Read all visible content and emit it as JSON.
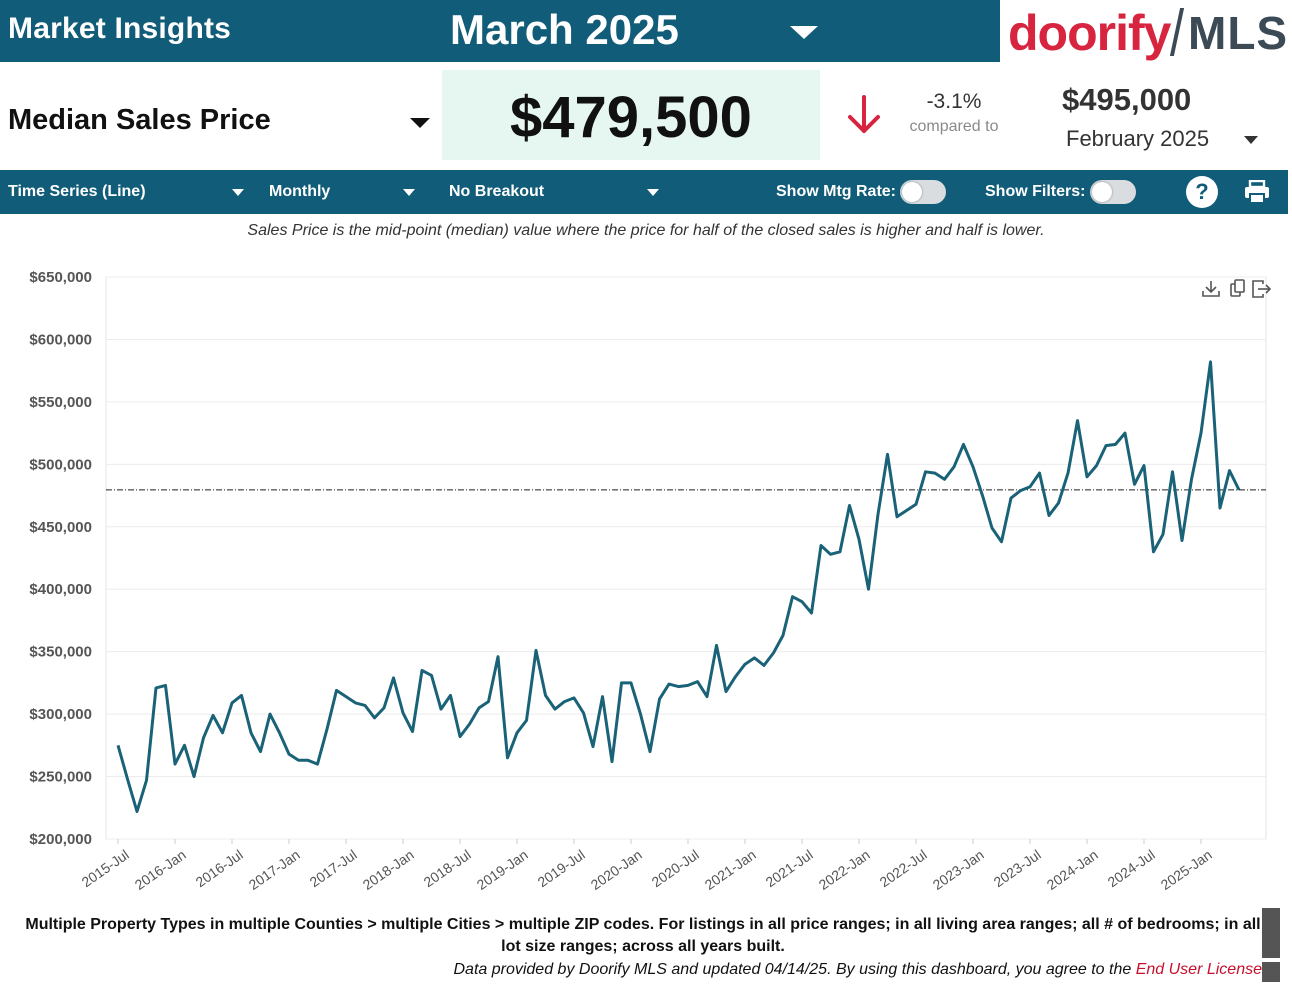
{
  "header": {
    "title": "Market Insights",
    "period": "March 2025",
    "logo_brand": "doorify",
    "logo_mls": "MLS"
  },
  "metric": {
    "name": "Median Sales Price",
    "value": "$479,500",
    "change_pct": "-3.1%",
    "compared_label": "compared to",
    "compare_value": "$495,000",
    "compare_month": "February 2025"
  },
  "controls": {
    "chart_type": "Time Series (Line)",
    "interval": "Monthly",
    "breakout": "No Breakout",
    "mtg_rate_label": "Show Mtg Rate:",
    "filters_label": "Show Filters:",
    "help_label": "?"
  },
  "note": "Sales Price is the mid-point (median) value where the price for half of the closed sales is higher and half is lower.",
  "colors": {
    "header_bg": "#115c78",
    "line": "#1a6277",
    "value_box": "#e6f6f1",
    "down_arrow": "#d7243f",
    "brand_red": "#d7243f"
  },
  "chart_data": {
    "type": "line",
    "x_start": "2015-07",
    "x_tick_labels": [
      "2015-Jul",
      "2016-Jan",
      "2016-Jul",
      "2017-Jan",
      "2017-Jul",
      "2018-Jan",
      "2018-Jul",
      "2019-Jan",
      "2019-Jul",
      "2020-Jan",
      "2020-Jul",
      "2021-Jan",
      "2021-Jul",
      "2022-Jan",
      "2022-Jul",
      "2023-Jan",
      "2023-Jul",
      "2024-Jan",
      "2024-Jul",
      "2025-Jan"
    ],
    "y_tick_labels": [
      "$200,000",
      "$250,000",
      "$300,000",
      "$350,000",
      "$400,000",
      "$450,000",
      "$500,000",
      "$550,000",
      "$600,000",
      "$650,000"
    ],
    "ylim": [
      200000,
      650000
    ],
    "reference_line": 479500,
    "grid": true,
    "values": [
      275000,
      248000,
      222000,
      247000,
      321000,
      323000,
      260000,
      275000,
      250000,
      281000,
      299000,
      285000,
      309000,
      315000,
      285000,
      270000,
      300000,
      285000,
      268000,
      263000,
      263000,
      260000,
      288000,
      319000,
      314000,
      309000,
      307000,
      297000,
      305000,
      329000,
      301000,
      286000,
      335000,
      331000,
      304000,
      315000,
      282000,
      292000,
      305000,
      310000,
      346000,
      265000,
      285000,
      295000,
      351000,
      315000,
      304000,
      310000,
      313000,
      301000,
      274000,
      314000,
      262000,
      325000,
      325000,
      300000,
      270000,
      312000,
      324000,
      322000,
      323000,
      326000,
      314000,
      355000,
      318000,
      330000,
      340000,
      345000,
      339000,
      349000,
      363000,
      394000,
      390000,
      381000,
      435000,
      428000,
      430000,
      467000,
      440000,
      400000,
      460000,
      508000,
      458000,
      463000,
      468000,
      494000,
      493000,
      488000,
      498000,
      516000,
      498000,
      475000,
      449000,
      438000,
      473000,
      479000,
      482000,
      493000,
      459000,
      469000,
      493000,
      535000,
      490000,
      499000,
      515000,
      516000,
      525000,
      484000,
      499000,
      430000,
      444000,
      494000,
      439000,
      488000,
      525000,
      582000,
      465000,
      495000,
      479500
    ]
  },
  "footer": {
    "filters_text": "Multiple Property Types in multiple Counties > multiple Cities > multiple ZIP codes. For listings in all price ranges; in all living area ranges; all # of bedrooms; in all lot size ranges; across all years built.",
    "data_text": "Data provided by Doorify MLS and updated 04/14/25.  By using this dashboard, you agree to the ",
    "license_link": "End User License"
  }
}
